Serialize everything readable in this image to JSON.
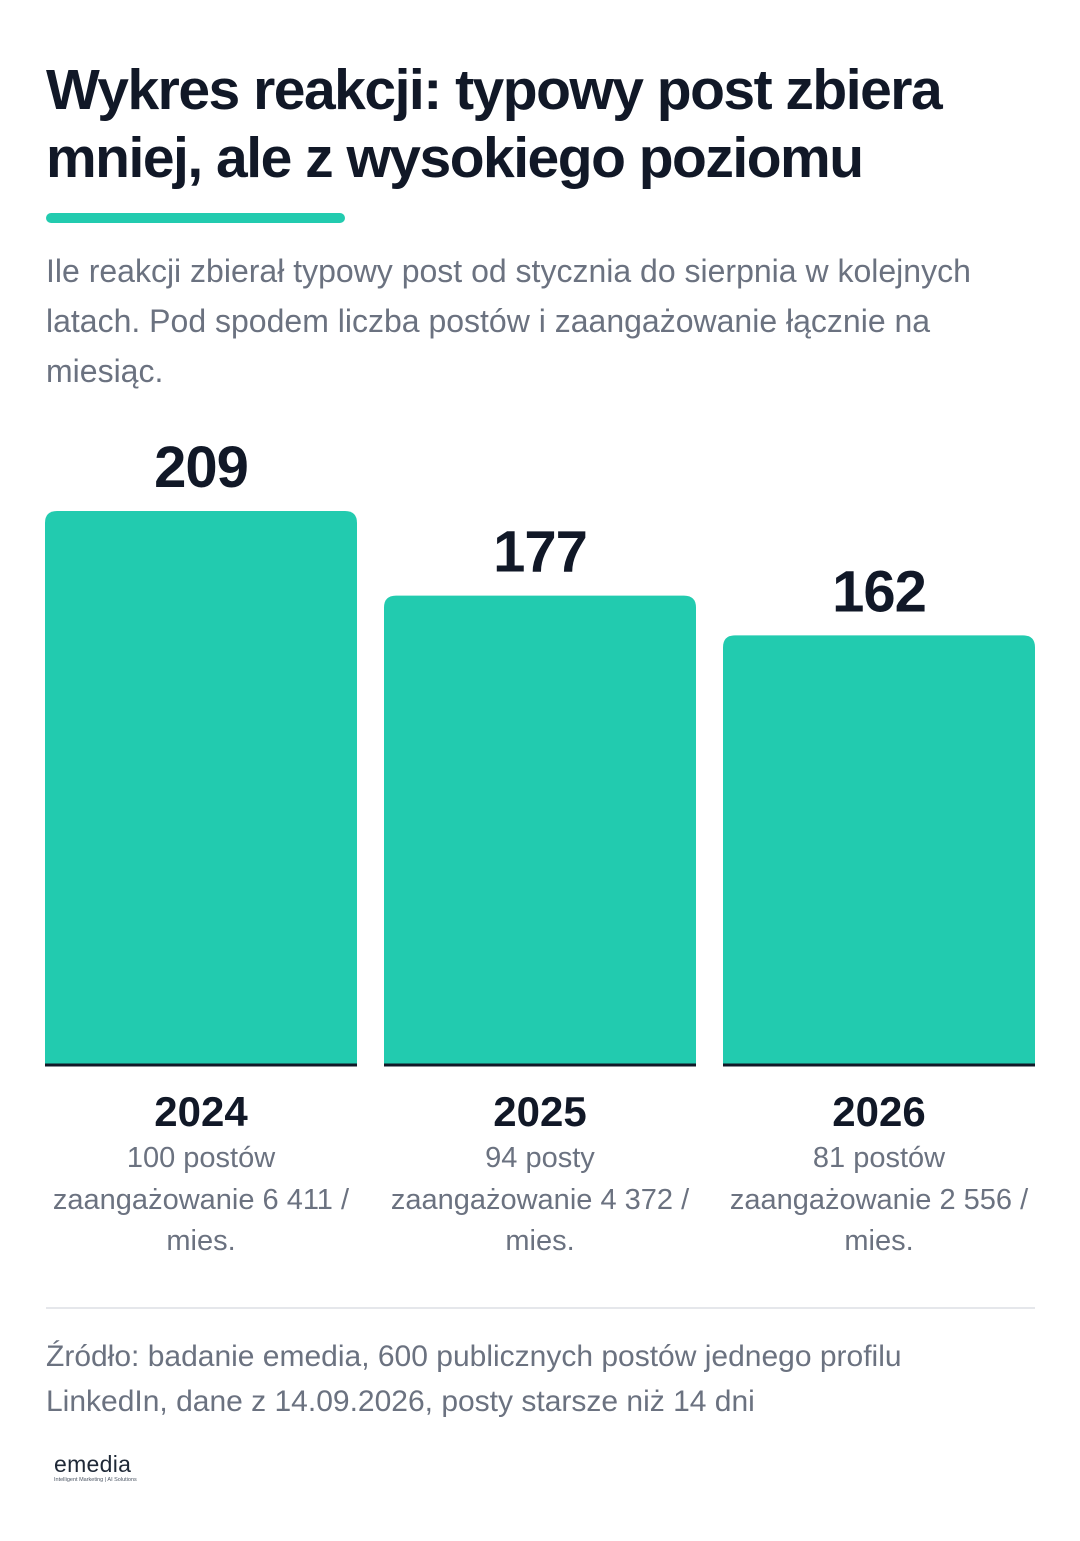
{
  "header": {
    "title": "Wykres reakcji: typowy post zbiera mniej, ale z wysokiego poziomu",
    "subtitle": "Ile reakcji zbierał typowy post od stycznia do sierpnia w kolejnych latach. Pod spodem liczba postów i zaangażowanie łącznie na miesiąc.",
    "accent_color": "#22cbaf"
  },
  "chart_data": {
    "type": "bar",
    "categories": [
      "2024",
      "2025",
      "2026"
    ],
    "values": [
      209,
      177,
      162
    ],
    "value_labels": [
      "209",
      "177",
      "162"
    ],
    "details": [
      {
        "posts": "100 postów",
        "engagement": "zaangażowanie 6 411 / mies."
      },
      {
        "posts": "94 posty",
        "engagement": "zaangażowanie 4 372 / mies."
      },
      {
        "posts": "81 postów",
        "engagement": "zaangażowanie 2 556 / mies."
      }
    ],
    "bar_color": "#22cbaf",
    "ylim": [
      0,
      209
    ],
    "grid": false,
    "legend": "none"
  },
  "footer": {
    "source": "Źródło: badanie emedia, 600 publicznych postów jednego profilu LinkedIn, dane z 14.09.2026, posty starsze niż 14 dni",
    "logo_text": "emedia",
    "logo_tagline": "Intelligent Marketing | AI Solutions"
  }
}
